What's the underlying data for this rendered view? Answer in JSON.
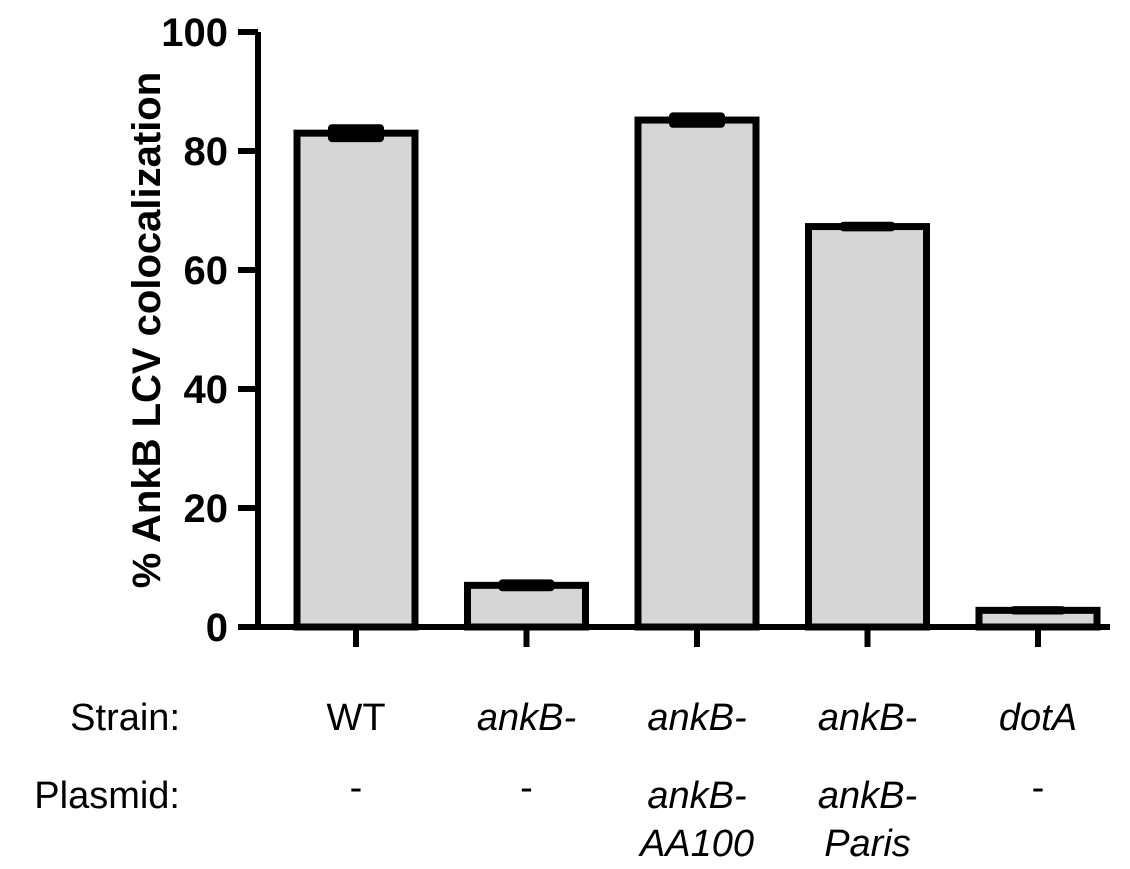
{
  "chart_data": {
    "type": "bar",
    "categories": [
      "WT",
      "ankB-",
      "ankB-",
      "ankB-",
      "dotA"
    ],
    "values": [
      83,
      7,
      85.2,
      67.3,
      2.8
    ],
    "errors": [
      1.5,
      1.0,
      1.3,
      0.8,
      0.7
    ],
    "ylabel": "% AnkB LCV colocalization",
    "ylim": [
      0,
      100
    ],
    "yticks": [
      0,
      20,
      40,
      60,
      80,
      100
    ],
    "bar_color": "#d6d6d6",
    "edge_color": "#000000",
    "grid": false
  },
  "x_table": {
    "rows": [
      {
        "label": "Strain:",
        "cells": [
          {
            "lines": [
              "WT"
            ],
            "italic": false
          },
          {
            "lines": [
              "ankB-"
            ],
            "italic": true
          },
          {
            "lines": [
              "ankB-"
            ],
            "italic": true
          },
          {
            "lines": [
              "ankB-"
            ],
            "italic": true
          },
          {
            "lines": [
              "dotA"
            ],
            "italic": true
          }
        ]
      },
      {
        "label": "Plasmid:",
        "cells": [
          {
            "lines": [
              "-"
            ],
            "italic": false
          },
          {
            "lines": [
              "-"
            ],
            "italic": false
          },
          {
            "lines": [
              "ankB-",
              "AA100"
            ],
            "italic": true
          },
          {
            "lines": [
              "ankB-",
              "Paris"
            ],
            "italic": true
          },
          {
            "lines": [
              "-"
            ],
            "italic": false
          }
        ]
      }
    ]
  }
}
